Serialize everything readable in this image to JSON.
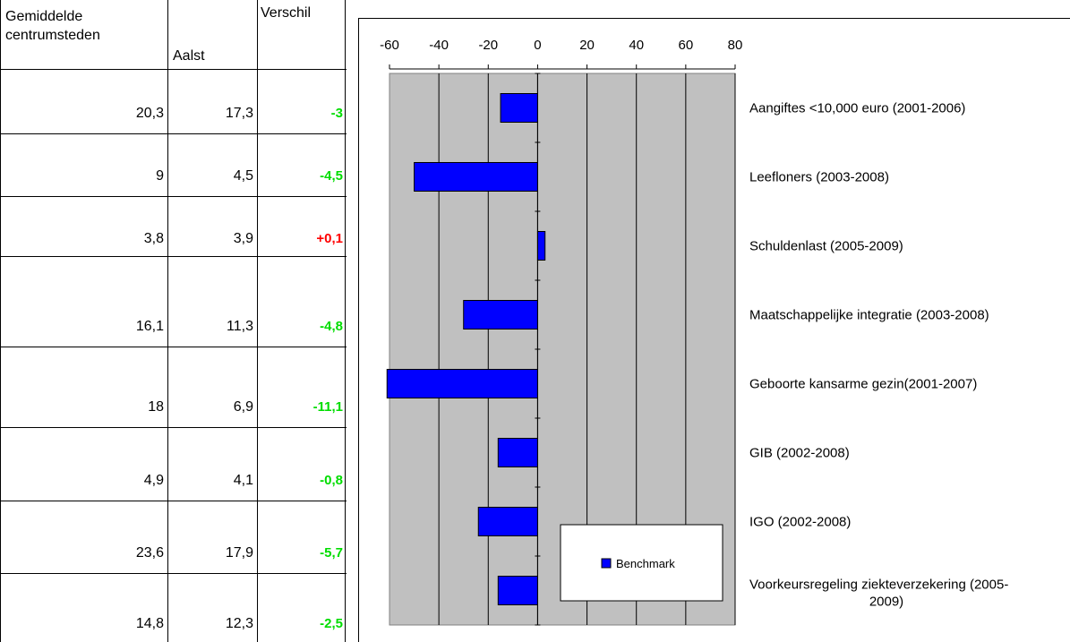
{
  "table": {
    "headers": {
      "col1": [
        "Gemiddelde",
        "centrumsteden"
      ],
      "col2": "Aalst",
      "col3": "Verschil"
    },
    "rows": [
      {
        "gem": "20,3",
        "aalst": "17,3",
        "diff": "-3",
        "color": "#00dd00"
      },
      {
        "gem": "9",
        "aalst": "4,5",
        "diff": "-4,5",
        "color": "#00dd00"
      },
      {
        "gem": "3,8",
        "aalst": "3,9",
        "diff": "+0,1",
        "color": "#ff0000"
      },
      {
        "gem": "16,1",
        "aalst": "11,3",
        "diff": "-4,8",
        "color": "#00dd00"
      },
      {
        "gem": "18",
        "aalst": "6,9",
        "diff": "-11,1",
        "color": "#00dd00"
      },
      {
        "gem": "4,9",
        "aalst": "4,1",
        "diff": "-0,8",
        "color": "#00dd00"
      },
      {
        "gem": "23,6",
        "aalst": "17,9",
        "diff": "-5,7",
        "color": "#00dd00"
      },
      {
        "gem": "14,8",
        "aalst": "12,3",
        "diff": "-2,5",
        "color": "#00dd00"
      }
    ]
  },
  "chart_data": {
    "type": "bar",
    "orientation": "horizontal",
    "x_ticks": [
      -60,
      -40,
      -20,
      0,
      20,
      40,
      60,
      80
    ],
    "xlim": [
      -60,
      80
    ],
    "plot_range": [
      -60,
      80
    ],
    "categories": [
      "Aangiftes <10,000 euro (2001-2006)",
      "Leefloners (2003-2008)",
      "Schuldenlast (2005-2009)",
      "Maatschappelijke integratie (2003-2008)",
      "Geboorte kansarme gezin(2001-2007)",
      "GIB (2002-2008)",
      "IGO (2002-2008)",
      "Voorkeursregeling ziekteverzekering (2005-2009)"
    ],
    "series": [
      {
        "name": "Benchmark",
        "color": "#0000ff",
        "values": [
          -15,
          -50,
          3,
          -30,
          -61,
          -16,
          -24,
          -16
        ]
      }
    ],
    "plot_background": "#c0c0c0",
    "grid": true,
    "legend": "bottom-right inside plot"
  }
}
